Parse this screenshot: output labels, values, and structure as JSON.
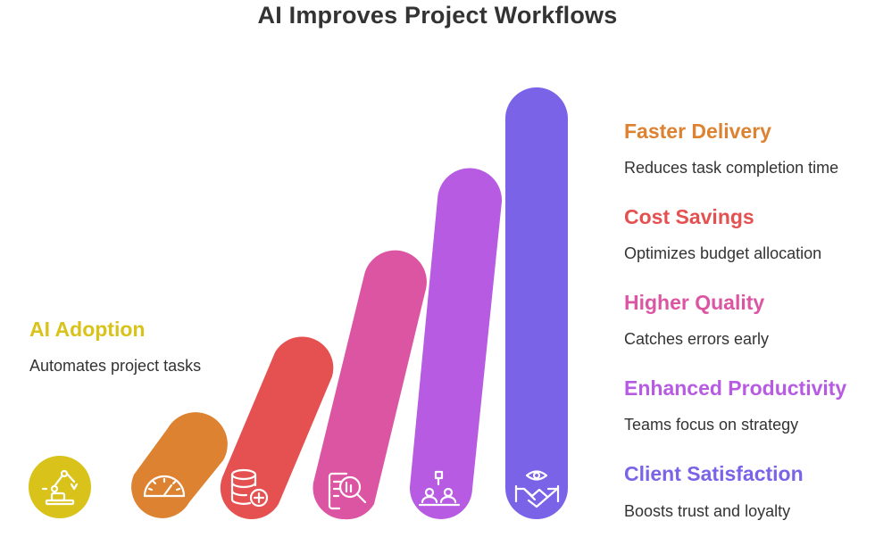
{
  "title": "AI Improves Project Workflows",
  "stages": [
    {
      "title": "AI Adoption",
      "description": "Automates project tasks",
      "color": "#d9c21a",
      "icon": "robot-arm-icon"
    },
    {
      "title": "Faster Delivery",
      "description": "Reduces task completion time",
      "color": "#dd8230",
      "icon": "speedometer-icon"
    },
    {
      "title": "Cost Savings",
      "description": "Optimizes budget allocation",
      "color": "#e55151",
      "icon": "database-add-icon"
    },
    {
      "title": "Higher Quality",
      "description": "Catches errors early",
      "color": "#dc55a3",
      "icon": "document-search-icon"
    },
    {
      "title": "Enhanced Productivity",
      "description": "Teams focus on strategy",
      "color": "#b65be2",
      "icon": "team-workstations-icon"
    },
    {
      "title": "Client Satisfaction",
      "description": "Boosts trust and loyalty",
      "color": "#7b63e8",
      "icon": "handshake-eye-icon"
    }
  ]
}
